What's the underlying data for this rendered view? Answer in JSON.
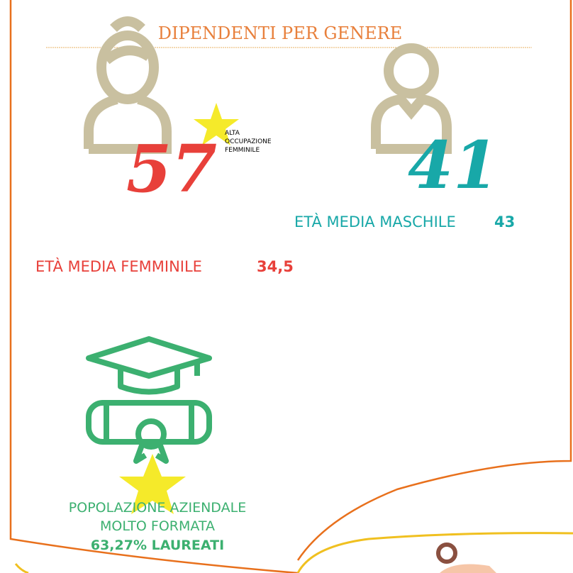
{
  "header": {
    "title": "DIPENDENTI PER GENERE"
  },
  "female": {
    "count": "57",
    "note": [
      "ALTA",
      "OCCUPAZIONE",
      "FEMMINILE"
    ],
    "age_label": "ETÀ MEDIA FEMMINILE",
    "age": "34,5"
  },
  "male": {
    "count": "41",
    "age_label": "ETÀ MEDIA MASCHILE",
    "age": "43"
  },
  "education": {
    "lines": [
      "POPOLAZIONE AZIENDALE",
      "MOLTO FORMATA"
    ],
    "highlight": "63,27% LAUREATI"
  }
}
